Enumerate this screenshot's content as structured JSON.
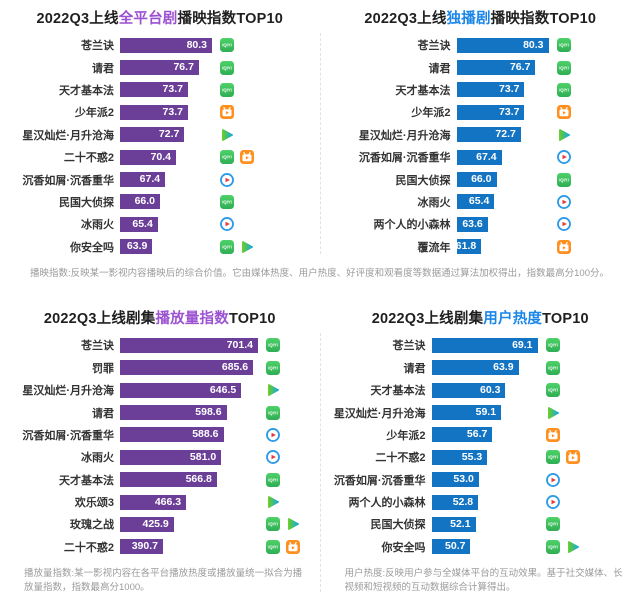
{
  "page": {
    "background": "#ffffff"
  },
  "colors": {
    "title_base": "#1f1f1f",
    "purple_bar": "#6B3E98",
    "blue_bar": "#1374C4",
    "purple_highlight": "#9B51D0",
    "blue_highlight": "#1A86E8",
    "footnote_gray": "#9b9b9b",
    "label_dark": "#333333"
  },
  "icons": {
    "iqiyi": {
      "fill_top": "#4ED168",
      "fill_bottom": "#2FAE54",
      "mark": "iQIYI"
    },
    "mango": {
      "fill": "#FF8F1F"
    },
    "tencent": {
      "gradient": [
        "#66CC29",
        "#15AAE3"
      ],
      "accent": "#FFC40C"
    },
    "youku": {
      "ring": "#2D9BE8",
      "play": "#E23B41"
    }
  },
  "footnotes": {
    "top": "播映指数:反映某一影视内容播映后的综合价值。它由媒体热度、用户热度、好评度和观看度等数据通过算法加权得出，指数最高分100分。",
    "bottom_left": "播放量指数:某一影视内容在各平台播放热度或播放量统一拟合为播放量指数，指数最高分1000。",
    "bottom_right": "用户热度:反映用户参与全媒体平台的互动效果。基于社交媒体、长视频和短视频的互动数据综合计算得出。"
  },
  "chart_data": [
    {
      "id": "all-platform-broadcast-index",
      "type": "bar",
      "orientation": "horizontal",
      "title": "2022Q3上线全平台剧播映指数TOP10",
      "title_parts": [
        {
          "text": "2022Q3上线",
          "color": "#1f1f1f"
        },
        {
          "text": "全平台剧",
          "color": "#9B51D0"
        },
        {
          "text": "播映指数TOP10",
          "color": "#1f1f1f"
        }
      ],
      "bar_color": "#6B3E98",
      "xlim": [
        55,
        80.3
      ],
      "categories": [
        "苍兰诀",
        "请君",
        "天才基本法",
        "少年派2",
        "星汉灿烂·月升沧海",
        "二十不惑2",
        "沉香如屑·沉香重华",
        "民国大侦探",
        "冰雨火",
        "你安全吗"
      ],
      "values": [
        80.3,
        76.7,
        73.7,
        73.7,
        72.7,
        70.4,
        67.4,
        66.0,
        65.4,
        63.9
      ],
      "value_labels": [
        "80.3",
        "76.7",
        "73.7",
        "73.7",
        "72.7",
        "70.4",
        "67.4",
        "66.0",
        "65.4",
        "63.9"
      ],
      "platforms": [
        [
          "iqiyi"
        ],
        [
          "iqiyi"
        ],
        [
          "iqiyi"
        ],
        [
          "mango"
        ],
        [
          "tencent"
        ],
        [
          "iqiyi",
          "mango"
        ],
        [
          "youku"
        ],
        [
          "iqiyi"
        ],
        [
          "youku"
        ],
        [
          "iqiyi",
          "tencent"
        ]
      ]
    },
    {
      "id": "exclusive-broadcast-index",
      "type": "bar",
      "orientation": "horizontal",
      "title": "2022Q3上线独播剧播映指数TOP10",
      "title_parts": [
        {
          "text": "2022Q3上线",
          "color": "#1f1f1f"
        },
        {
          "text": "独播剧",
          "color": "#1A86E8"
        },
        {
          "text": "播映指数TOP10",
          "color": "#1f1f1f"
        }
      ],
      "bar_color": "#1374C4",
      "xlim": [
        55,
        80.3
      ],
      "categories": [
        "苍兰诀",
        "请君",
        "天才基本法",
        "少年派2",
        "星汉灿烂·月升沧海",
        "沉香如屑·沉香重华",
        "民国大侦探",
        "冰雨火",
        "两个人的小森林",
        "覆流年"
      ],
      "values": [
        80.3,
        76.7,
        73.7,
        73.7,
        72.7,
        67.4,
        66.0,
        65.4,
        63.6,
        61.8
      ],
      "value_labels": [
        "80.3",
        "76.7",
        "73.7",
        "73.7",
        "72.7",
        "67.4",
        "66.0",
        "65.4",
        "63.6",
        "61.8"
      ],
      "platforms": [
        [
          "iqiyi"
        ],
        [
          "iqiyi"
        ],
        [
          "iqiyi"
        ],
        [
          "mango"
        ],
        [
          "tencent"
        ],
        [
          "youku"
        ],
        [
          "iqiyi"
        ],
        [
          "youku"
        ],
        [
          "youku"
        ],
        [
          "mango"
        ]
      ]
    },
    {
      "id": "playback-volume-index",
      "type": "bar",
      "orientation": "horizontal",
      "title": "2022Q3上线剧集播放量指数TOP10",
      "title_parts": [
        {
          "text": "2022Q3上线剧集",
          "color": "#1f1f1f"
        },
        {
          "text": "播放量指数",
          "color": "#9B51D0"
        },
        {
          "text": "TOP10",
          "color": "#1f1f1f"
        }
      ],
      "bar_color": "#6B3E98",
      "xlim": [
        250,
        701.4
      ],
      "categories": [
        "苍兰诀",
        "罚罪",
        "星汉灿烂·月升沧海",
        "请君",
        "沉香如屑·沉香重华",
        "冰雨火",
        "天才基本法",
        "欢乐颂3",
        "玫瑰之战",
        "二十不惑2"
      ],
      "values": [
        701.4,
        685.6,
        646.5,
        598.6,
        588.6,
        581.0,
        566.8,
        466.3,
        425.9,
        390.7
      ],
      "value_labels": [
        "701.4",
        "685.6",
        "646.5",
        "598.6",
        "588.6",
        "581.0",
        "566.8",
        "466.3",
        "425.9",
        "390.7"
      ],
      "platforms": [
        [
          "iqiyi"
        ],
        [
          "iqiyi"
        ],
        [
          "tencent"
        ],
        [
          "iqiyi"
        ],
        [
          "youku"
        ],
        [
          "youku"
        ],
        [
          "iqiyi"
        ],
        [
          "tencent"
        ],
        [
          "iqiyi",
          "tencent"
        ],
        [
          "iqiyi",
          "mango"
        ]
      ]
    },
    {
      "id": "user-heat-index",
      "type": "bar",
      "orientation": "horizontal",
      "title": "2022Q3上线剧集用户热度TOP10",
      "title_parts": [
        {
          "text": "2022Q3上线剧集",
          "color": "#1f1f1f"
        },
        {
          "text": "用户热度",
          "color": "#1A86E8"
        },
        {
          "text": "TOP10",
          "color": "#1f1f1f"
        }
      ],
      "bar_color": "#1374C4",
      "xlim": [
        40,
        69.1
      ],
      "categories": [
        "苍兰诀",
        "请君",
        "天才基本法",
        "星汉灿烂·月升沧海",
        "少年派2",
        "二十不惑2",
        "沉香如屑·沉香重华",
        "两个人的小森林",
        "民国大侦探",
        "你安全吗"
      ],
      "values": [
        69.1,
        63.9,
        60.3,
        59.1,
        56.7,
        55.3,
        53.0,
        52.8,
        52.1,
        50.7
      ],
      "value_labels": [
        "69.1",
        "63.9",
        "60.3",
        "59.1",
        "56.7",
        "55.3",
        "53.0",
        "52.8",
        "52.1",
        "50.7"
      ],
      "platforms": [
        [
          "iqiyi"
        ],
        [
          "iqiyi"
        ],
        [
          "iqiyi"
        ],
        [
          "tencent"
        ],
        [
          "mango"
        ],
        [
          "iqiyi",
          "mango"
        ],
        [
          "youku"
        ],
        [
          "youku"
        ],
        [
          "iqiyi"
        ],
        [
          "iqiyi",
          "tencent"
        ]
      ]
    }
  ]
}
